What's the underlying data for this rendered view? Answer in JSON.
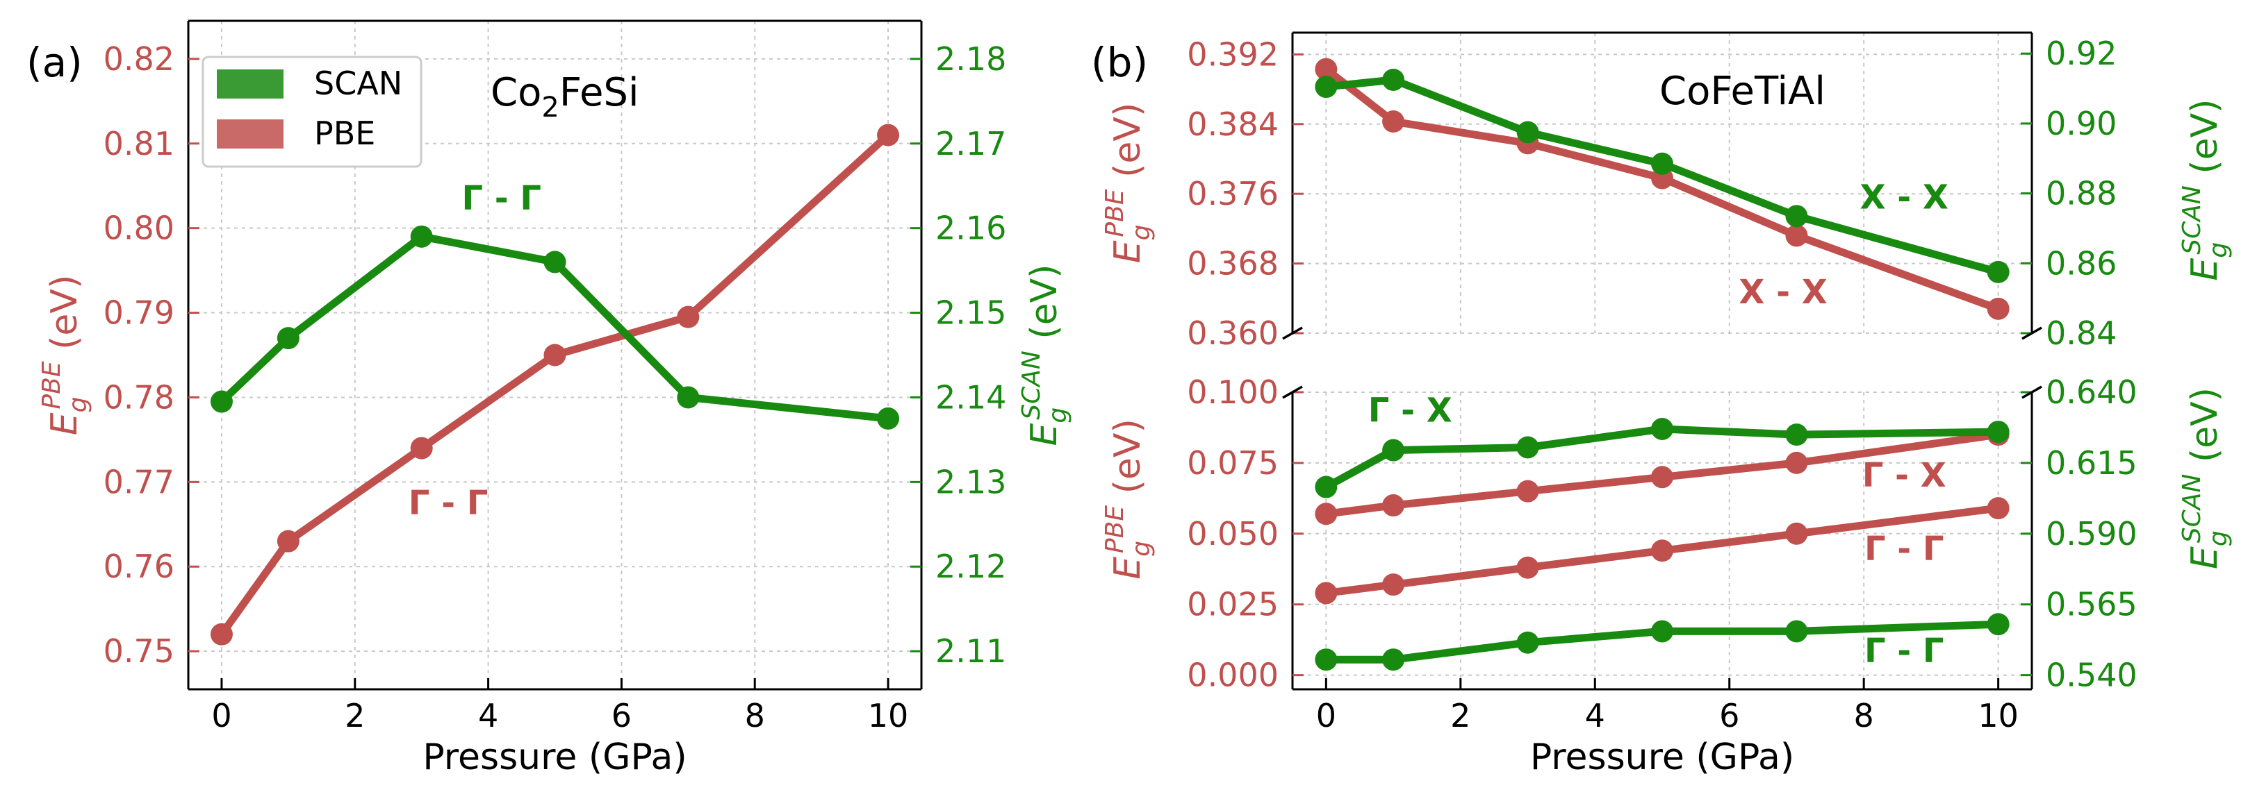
{
  "colors": {
    "pbe": "#c0504d",
    "scan": "#188a10",
    "axis": "#000000"
  },
  "chart_data": [
    {
      "panel": "(a)",
      "type": "line",
      "title": "Co2FeSi",
      "title_main": "Co",
      "title_sub": "2",
      "title_rest": "FeSi",
      "xlabel": "Pressure (GPa)",
      "ylabel_left": "E_g^{PBE} (eV)",
      "ylabel_right": "E_g^{SCAN} (eV)",
      "xlim": [
        -0.5,
        10.5
      ],
      "ylim_left": [
        0.7455,
        0.8245
      ],
      "ylim_right": [
        2.1055,
        2.1845
      ],
      "xticks": [
        "0",
        "2",
        "4",
        "6",
        "8",
        "10"
      ],
      "yticks_left": [
        "0.75",
        "0.76",
        "0.77",
        "0.78",
        "0.79",
        "0.80",
        "0.81",
        "0.82"
      ],
      "yticks_right": [
        "2.11",
        "2.12",
        "2.13",
        "2.14",
        "2.15",
        "2.16",
        "2.17",
        "2.18"
      ],
      "legend": {
        "position": "top-left",
        "entries": [
          "SCAN",
          "PBE"
        ]
      },
      "series": [
        {
          "name": "PBE",
          "axis": "left",
          "x": [
            0,
            1,
            3,
            5,
            7,
            10
          ],
          "values": [
            0.752,
            0.763,
            0.774,
            0.785,
            0.7895,
            0.811
          ]
        },
        {
          "name": "SCAN",
          "axis": "right",
          "x": [
            0,
            1,
            3,
            5,
            7,
            10
          ],
          "values": [
            2.1395,
            2.147,
            2.159,
            2.156,
            2.14,
            2.1375
          ]
        }
      ],
      "annotations": [
        {
          "text": "Γ - Γ",
          "series": "SCAN",
          "x": 4.2,
          "y": 2.1635
        },
        {
          "text": "Γ - Γ",
          "series": "PBE",
          "x": 3.4,
          "y": 0.7675
        }
      ]
    },
    {
      "panel": "(b)",
      "type": "line",
      "title": "CoFeTiAl",
      "xlabel": "Pressure (GPa)",
      "ylabel_left": "E_g^{PBE} (eV)",
      "ylabel_right": "E_g^{SCAN} (eV)",
      "xlim": [
        -0.5,
        10.5
      ],
      "xticks": [
        "0",
        "2",
        "4",
        "6",
        "8",
        "10"
      ],
      "upper": {
        "ylim_left": [
          0.36,
          0.3945
        ],
        "ylim_right": [
          0.84,
          0.926
        ],
        "yticks_left": [
          "0.360",
          "0.368",
          "0.376",
          "0.384",
          "0.392"
        ],
        "yticks_right": [
          "0.84",
          "0.86",
          "0.88",
          "0.90",
          "0.92"
        ],
        "series": [
          {
            "name": "PBE X-X",
            "axis": "left",
            "x": [
              0,
              1,
              3,
              5,
              7,
              10
            ],
            "values": [
              0.3903,
              0.3843,
              0.3818,
              0.3778,
              0.3712,
              0.3628
            ]
          },
          {
            "name": "SCAN X-X",
            "axis": "right",
            "x": [
              0,
              1,
              3,
              5,
              7,
              10
            ],
            "values": [
              0.9105,
              0.9125,
              0.8975,
              0.8885,
              0.8735,
              0.8575
            ]
          }
        ],
        "annotations": [
          {
            "text": "X - X",
            "series": "SCAN",
            "x": 8.6,
            "y": 0.8788
          },
          {
            "text": "X - X",
            "series": "PBE",
            "x": 6.8,
            "y": 0.3647
          }
        ]
      },
      "lower": {
        "ylim_left": [
          -0.005,
          0.1
        ],
        "ylim_right": [
          0.535,
          0.64
        ],
        "yticks_left": [
          "0.000",
          "0.025",
          "0.050",
          "0.075",
          "0.100"
        ],
        "yticks_right": [
          "0.540",
          "0.565",
          "0.590",
          "0.615",
          "0.640"
        ],
        "series": [
          {
            "name": "PBE Γ-X",
            "axis": "left",
            "x": [
              0,
              1,
              3,
              5,
              7,
              10
            ],
            "values": [
              0.057,
              0.06,
              0.065,
              0.07,
              0.075,
              0.085
            ]
          },
          {
            "name": "PBE Γ-Γ",
            "axis": "left",
            "x": [
              0,
              1,
              3,
              5,
              7,
              10
            ],
            "values": [
              0.029,
              0.032,
              0.038,
              0.044,
              0.05,
              0.059
            ]
          },
          {
            "name": "SCAN Γ-X",
            "axis": "right",
            "x": [
              0,
              1,
              3,
              5,
              7,
              10
            ],
            "values": [
              0.6065,
              0.6195,
              0.6205,
              0.627,
              0.625,
              0.626
            ]
          },
          {
            "name": "SCAN Γ-Γ",
            "axis": "right",
            "x": [
              0,
              1,
              3,
              5,
              7,
              10
            ],
            "values": [
              0.5455,
              0.5455,
              0.5515,
              0.5555,
              0.5555,
              0.558
            ]
          }
        ],
        "annotations": [
          {
            "text": "Γ - X",
            "series": "SCAN",
            "x": 1.25,
            "y": 0.6335
          },
          {
            "text": "Γ - X",
            "series": "PBE",
            "x": 8.6,
            "y": 0.0705
          },
          {
            "text": "Γ - Γ",
            "series": "PBE",
            "x": 8.6,
            "y": 0.0445
          },
          {
            "text": "Γ - Γ",
            "series": "SCAN",
            "x": 8.6,
            "y": 0.5485
          }
        ]
      }
    }
  ]
}
